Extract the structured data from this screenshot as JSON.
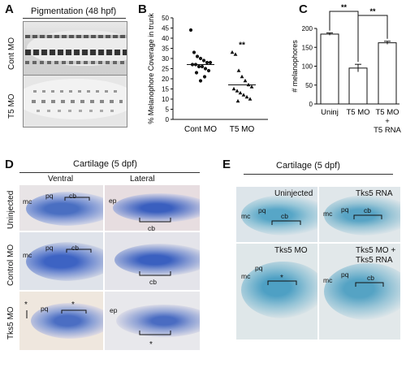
{
  "panels": {
    "A": {
      "label": "A",
      "title": "Pigmentation (48 hpf)",
      "rows": [
        "Cont MO",
        "T5 MO"
      ]
    },
    "B": {
      "label": "B"
    },
    "C": {
      "label": "C"
    },
    "D": {
      "label": "D",
      "title": "Cartilage (5 dpf)",
      "col_ventral": "Ventral",
      "col_lateral": "Lateral",
      "rows": [
        "Uninjected",
        "Control MO",
        "Tks5 MO"
      ],
      "tags": {
        "mc": "mc",
        "pq": "pq",
        "cb": "cb",
        "ep": "ep",
        "star": "*"
      }
    },
    "E": {
      "label": "E",
      "title": "Cartilage (5 dpf)",
      "conditions": [
        "Uninjected",
        "Tks5 RNA",
        "Tks5 MO",
        "Tks5 MO +",
        "Tks5 RNA"
      ],
      "tags": {
        "mc": "mc",
        "pq": "pq",
        "cb": "cb",
        "star": "*"
      }
    }
  },
  "chart_data": [
    {
      "type": "scatter",
      "ylabel": "% Melanophore Coverage in trunk",
      "categories": [
        "Cont MO",
        "T5 MO"
      ],
      "ylim": [
        0,
        50
      ],
      "yticks": [
        0,
        5,
        10,
        15,
        20,
        25,
        30,
        35,
        40,
        45,
        50
      ],
      "significance": "**",
      "series": [
        {
          "group": "Cont MO",
          "marker": "circle",
          "mean": 27,
          "values": [
            44,
            33,
            31,
            30,
            29,
            28,
            28,
            27,
            27,
            26,
            26,
            25,
            24,
            23,
            21,
            19
          ]
        },
        {
          "group": "T5 MO",
          "marker": "triangle",
          "mean": 17,
          "values": [
            33,
            32,
            24,
            21,
            19,
            17,
            16,
            15,
            14,
            13,
            12,
            11,
            10,
            9
          ]
        }
      ]
    },
    {
      "type": "bar",
      "ylabel": "# melanophores",
      "categories": [
        "Uninj",
        "T5 MO",
        "T5 MO + T5 RNA"
      ],
      "category_lines": [
        [
          "Uninj"
        ],
        [
          "T5 MO"
        ],
        [
          "T5 MO",
          "+",
          "T5 RNA"
        ]
      ],
      "values": [
        185,
        95,
        162
      ],
      "errors": [
        3,
        10,
        4
      ],
      "ylim": [
        0,
        200
      ],
      "yticks": [
        0,
        50,
        100,
        150,
        200
      ],
      "brackets": [
        {
          "from": 0,
          "to": 1,
          "label": "**"
        },
        {
          "from": 1,
          "to": 2,
          "label": "**"
        }
      ]
    }
  ]
}
